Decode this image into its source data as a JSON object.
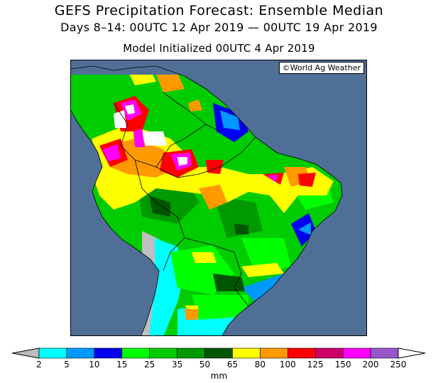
{
  "title": "GEFS Precipitation Forecast: Ensemble Median",
  "subtitle": "Days 8–14: 00UTC 12 Apr 2019 — 00UTC 19 Apr 2019",
  "init_line": "Model Initialized 00UTC 4 Apr 2019",
  "copyright": "©World Ag Weather",
  "legend": {
    "unit": "mm",
    "ticks": [
      "2",
      "5",
      "10",
      "15",
      "25",
      "35",
      "50",
      "65",
      "80",
      "100",
      "125",
      "150",
      "200",
      "250"
    ],
    "colors": [
      "#00ffff",
      "#0099ff",
      "#0000ee",
      "#00ff00",
      "#00cc00",
      "#009900",
      "#005500",
      "#ffff00",
      "#ff9900",
      "#ff0000",
      "#cc0066",
      "#ff00ff",
      "#9955cc"
    ],
    "low_end_color": "#bbbbbb",
    "high_end_color": "#ffffff"
  },
  "colors": {
    "ocean": "#4f6f96",
    "no_rain_land": "#bfbfbf"
  }
}
